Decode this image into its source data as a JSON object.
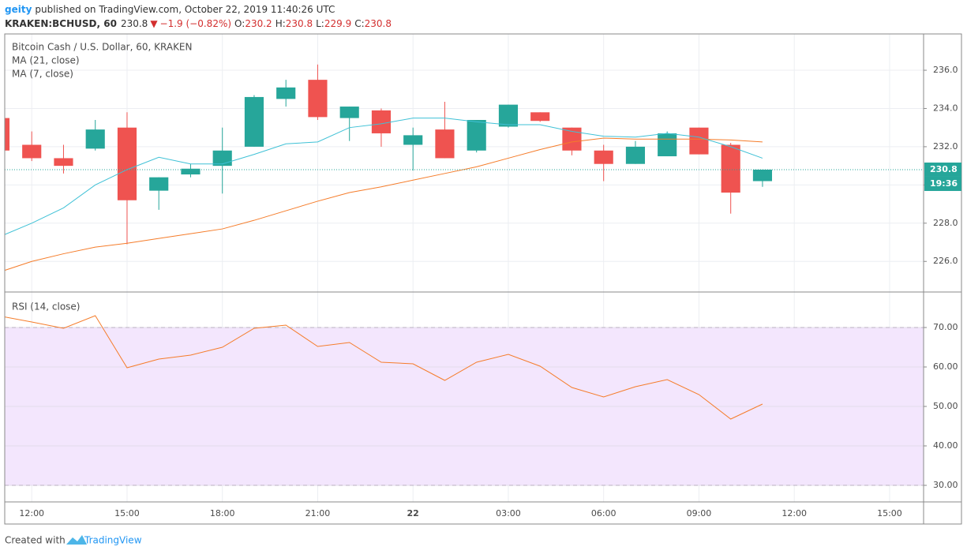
{
  "header": {
    "author": "geity",
    "published": "published on TradingView.com, October 22, 2019 11:40:26 UTC",
    "symbol": "KRAKEN:BCHUSD, 60",
    "last": "230.8",
    "arrow": "▼",
    "change": "−1.9 (−0.82%)",
    "ohlc": [
      {
        "label": "O:",
        "value": "230.2"
      },
      {
        "label": "H:",
        "value": "230.8"
      },
      {
        "label": "L:",
        "value": "229.9"
      },
      {
        "label": "C:",
        "value": "230.8"
      }
    ]
  },
  "chart_data": [
    {
      "type": "candlestick",
      "title": "Bitcoin Cash / U.S. Dollar, 60, KRAKEN",
      "x": [
        -1,
        0,
        1,
        2,
        3,
        4,
        5,
        6,
        7,
        8,
        9,
        10,
        11,
        12,
        13,
        14,
        15,
        16,
        17,
        18,
        19,
        20,
        21,
        22,
        23
      ],
      "open": [
        233.5,
        232.1,
        231.4,
        231.9,
        233.0,
        229.7,
        230.55,
        231.0,
        232.0,
        234.5,
        235.5,
        233.5,
        233.9,
        232.1,
        232.9,
        231.8,
        233.05,
        233.8,
        233.0,
        231.8,
        231.1,
        231.5,
        233.0,
        232.1,
        230.2
      ],
      "high": [
        233.6,
        232.8,
        232.1,
        233.4,
        233.8,
        230.4,
        231.1,
        233.0,
        234.7,
        235.5,
        236.3,
        234.1,
        234.0,
        233.0,
        234.35,
        233.4,
        234.2,
        233.8,
        233.0,
        232.1,
        232.3,
        232.8,
        233.0,
        232.2,
        230.8
      ],
      "low": [
        231.8,
        231.25,
        230.6,
        231.8,
        226.9,
        228.7,
        230.4,
        229.55,
        232.0,
        234.1,
        233.4,
        232.3,
        232.0,
        230.75,
        231.4,
        231.7,
        233.0,
        233.3,
        231.55,
        230.2,
        231.1,
        231.5,
        231.6,
        228.5,
        229.9
      ],
      "close": [
        231.8,
        231.4,
        231.0,
        232.9,
        229.2,
        230.4,
        230.85,
        231.8,
        234.6,
        235.1,
        233.55,
        234.1,
        232.7,
        232.6,
        231.4,
        233.4,
        234.2,
        233.35,
        231.8,
        231.1,
        232.0,
        232.7,
        231.6,
        229.6,
        230.8
      ],
      "up_color": "#26a69a",
      "down_color": "#ef5350",
      "series": [
        {
          "name": "MA (21, close)",
          "color": "#f57c2a",
          "values": [
            225.45,
            226.0,
            226.4,
            226.75,
            226.95,
            227.2,
            227.45,
            227.7,
            228.15,
            228.65,
            229.15,
            229.6,
            229.9,
            230.25,
            230.6,
            230.95,
            231.4,
            231.85,
            232.25,
            232.45,
            232.4,
            232.4,
            232.4,
            232.35,
            232.25
          ]
        },
        {
          "name": "MA (7, close)",
          "color": "#3fc1d6",
          "values": [
            227.3,
            228.0,
            228.8,
            230.0,
            230.8,
            231.45,
            231.1,
            231.1,
            231.6,
            232.15,
            232.25,
            233.0,
            233.2,
            233.5,
            233.5,
            233.3,
            233.15,
            233.15,
            232.8,
            232.55,
            232.5,
            232.7,
            232.5,
            232.0,
            231.4
          ]
        }
      ],
      "xlim": [
        -0.85,
        28.07
      ],
      "ylim": [
        224.4,
        237.9
      ],
      "yticks": [
        {
          "value": 226,
          "label": "226.0"
        },
        {
          "value": 228,
          "label": "228.0"
        },
        {
          "value": 230,
          "label": "230.0"
        },
        {
          "value": 232,
          "label": "232.0"
        },
        {
          "value": 234,
          "label": "234.0"
        },
        {
          "value": 236,
          "label": "236.0"
        }
      ],
      "last_price": 230.8,
      "countdown": "19:36",
      "grid": true
    },
    {
      "type": "line",
      "x": [
        -1,
        0,
        1,
        2,
        3,
        4,
        5,
        6,
        7,
        8,
        9,
        10,
        11,
        12,
        13,
        14,
        15,
        16,
        17,
        18,
        19,
        20,
        21,
        22,
        23
      ],
      "series": [
        {
          "name": "RSI (14, close)",
          "color": "#f57c2a",
          "values": [
            72.9,
            71.4,
            69.8,
            73.0,
            59.8,
            62.0,
            63.0,
            65.0,
            69.8,
            70.6,
            65.2,
            66.2,
            61.2,
            60.8,
            56.6,
            61.2,
            63.2,
            60.2,
            54.8,
            52.4,
            55.0,
            56.8,
            53.0,
            46.8,
            50.6
          ]
        }
      ],
      "band": [
        30,
        70
      ],
      "band_color": "#f3e6fd",
      "xlim": [
        -0.85,
        28.07
      ],
      "ylim": [
        25.8,
        79
      ],
      "yticks": [
        {
          "value": 30,
          "label": "30.00"
        },
        {
          "value": 40,
          "label": "40.00"
        },
        {
          "value": 50,
          "label": "50.00"
        },
        {
          "value": 60,
          "label": "60.00"
        },
        {
          "value": 70,
          "label": "70.00"
        }
      ],
      "xticks": [
        {
          "value": 0,
          "label": "12:00"
        },
        {
          "value": 3,
          "label": "15:00"
        },
        {
          "value": 6,
          "label": "18:00"
        },
        {
          "value": 9,
          "label": "21:00"
        },
        {
          "value": 12,
          "label": "22"
        },
        {
          "value": 15,
          "label": "03:00"
        },
        {
          "value": 18,
          "label": "06:00"
        },
        {
          "value": 21,
          "label": "09:00"
        },
        {
          "value": 24,
          "label": "12:00"
        },
        {
          "value": 27,
          "label": "15:00"
        }
      ],
      "grid": true
    }
  ],
  "footer": {
    "created": "Created with",
    "brand": "TradingView"
  }
}
